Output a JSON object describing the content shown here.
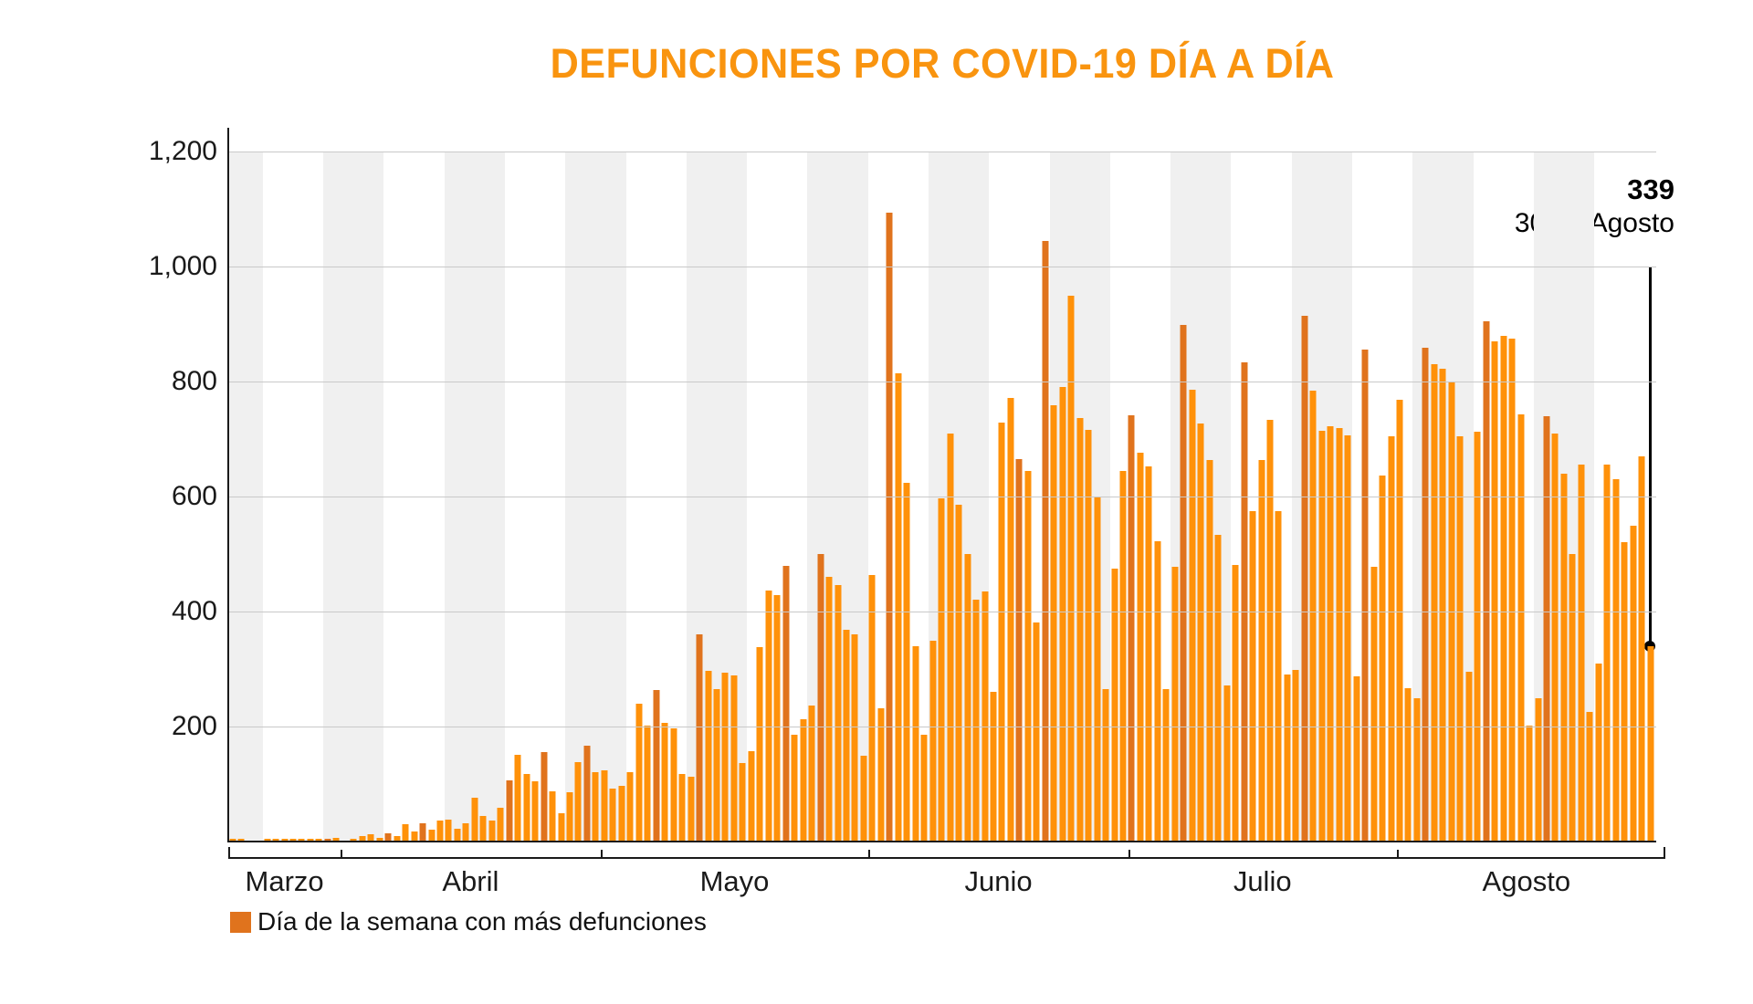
{
  "title": "DEFUNCIONES POR COVID-19 DÍA A DÍA",
  "colors": {
    "title": "#F9940F",
    "bar": "#FF9109",
    "bar_highlight": "#E0731D",
    "stripe": "#F0F0F0",
    "grid": "#C9C9C9",
    "axis": "#1A1A1A"
  },
  "y_axis": {
    "max": 1200,
    "tick_values": [
      1200,
      1000,
      800,
      600,
      400,
      200
    ],
    "tick_labels": [
      "1,200",
      "1,000",
      "800",
      "600",
      "400",
      "200"
    ]
  },
  "annotation": {
    "value": "339",
    "date_label": "30 de Agosto"
  },
  "legend": {
    "label": "Día de la semana con más defunciones"
  },
  "chart_data": {
    "type": "bar",
    "ylim": [
      0,
      1200
    ],
    "grid": true,
    "legend_position": "bottom-left",
    "months": [
      {
        "label": "Marzo",
        "values": [
          5,
          5,
          1,
          1,
          4,
          4,
          4,
          4,
          4,
          4,
          4,
          4,
          7
        ],
        "highlights": [
          11
        ]
      },
      {
        "label": "Abril",
        "values": [
          2,
          4,
          9,
          12,
          7,
          15,
          10,
          30,
          17,
          32,
          21,
          37,
          38,
          22,
          31,
          77,
          44,
          37,
          58,
          106,
          151,
          118,
          104,
          155,
          87,
          49,
          85,
          138,
          167,
          120
        ],
        "highlights": [
          5,
          9,
          19,
          23,
          28
        ]
      },
      {
        "label": "Mayo",
        "values": [
          124,
          92,
          97,
          121,
          240,
          201,
          264,
          207,
          197,
          118,
          113,
          361,
          297,
          265,
          293,
          289,
          137,
          157,
          338,
          437,
          428,
          480,
          185,
          212,
          236,
          500,
          460,
          446,
          369,
          361,
          149
        ],
        "highlights": [
          6,
          11,
          21,
          25
        ]
      },
      {
        "label": "Junio",
        "values": [
          463,
          232,
          1093,
          815,
          624,
          340,
          185,
          350,
          597,
          710,
          586,
          500,
          420,
          435,
          260,
          729,
          772,
          665,
          644,
          381,
          1045,
          758,
          790,
          949,
          736,
          716,
          599,
          265,
          474,
          644
        ],
        "highlights": [
          2,
          17,
          20
        ]
      },
      {
        "label": "Julio",
        "values": [
          742,
          677,
          653,
          523,
          265,
          478,
          899,
          786,
          727,
          664,
          533,
          272,
          481,
          834,
          575,
          664,
          733,
          575,
          291,
          298,
          915,
          784,
          714,
          723,
          719,
          706,
          288,
          856,
          478,
          636,
          704
        ],
        "highlights": [
          0,
          6,
          13,
          20,
          27
        ]
      },
      {
        "label": "Agosto",
        "values": [
          769,
          267,
          249,
          859,
          830,
          822,
          798,
          705,
          296,
          713,
          905,
          870,
          880,
          875,
          743,
          202,
          249,
          740,
          710,
          640,
          500,
          655,
          225,
          310,
          655,
          630,
          520,
          550,
          670,
          339
        ],
        "highlights": [
          3,
          10,
          17
        ]
      }
    ]
  }
}
